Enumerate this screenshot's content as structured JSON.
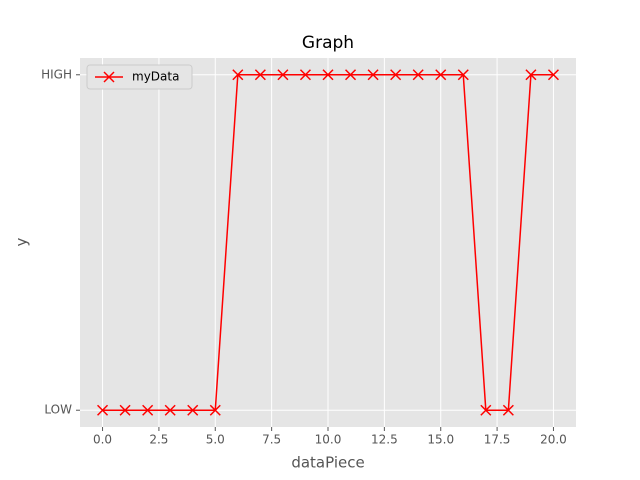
{
  "chart_data": {
    "type": "line",
    "title": "Graph",
    "x_label": "dataPiece",
    "y_label": "y",
    "x": [
      0,
      1,
      2,
      3,
      4,
      5,
      6,
      7,
      8,
      9,
      10,
      11,
      12,
      13,
      14,
      15,
      16,
      17,
      18,
      19,
      20
    ],
    "series": [
      {
        "name": "myData",
        "color": "#ff0000",
        "marker": "x",
        "values": [
          0,
          0,
          0,
          0,
          0,
          0,
          1,
          1,
          1,
          1,
          1,
          1,
          1,
          1,
          1,
          1,
          1,
          0,
          0,
          1,
          1
        ]
      }
    ],
    "xlim": [
      -1,
      21
    ],
    "ylim": [
      -0.05,
      1.05
    ],
    "xticks": [
      {
        "value": 0,
        "label": "0.0"
      },
      {
        "value": 2.5,
        "label": "2.5"
      },
      {
        "value": 5,
        "label": "5.0"
      },
      {
        "value": 7.5,
        "label": "7.5"
      },
      {
        "value": 10,
        "label": "10.0"
      },
      {
        "value": 12.5,
        "label": "12.5"
      },
      {
        "value": 15,
        "label": "15.0"
      },
      {
        "value": 17.5,
        "label": "17.5"
      },
      {
        "value": 20,
        "label": "20.0"
      }
    ],
    "yticks": [
      {
        "value": 0,
        "label": "LOW"
      },
      {
        "value": 1,
        "label": "HIGH"
      }
    ],
    "grid": true,
    "legend": "upper-left"
  }
}
